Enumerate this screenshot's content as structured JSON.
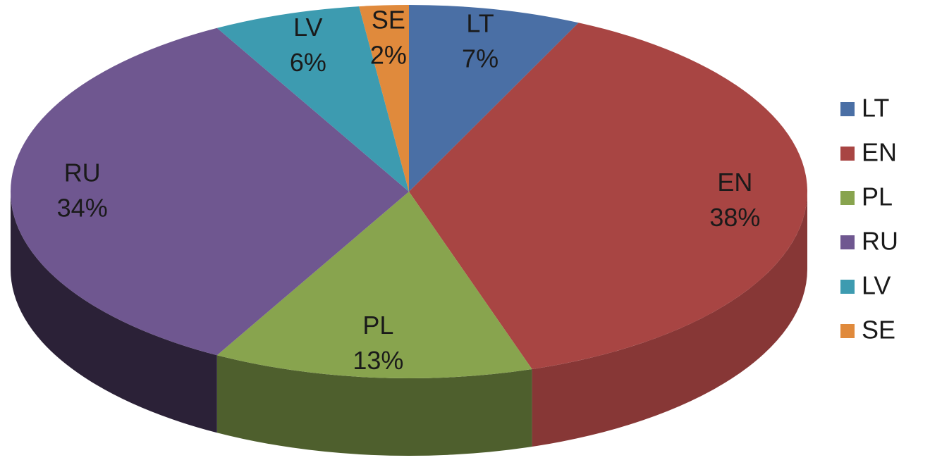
{
  "chart_data": {
    "type": "pie",
    "categories": [
      "LT",
      "EN",
      "PL",
      "RU",
      "LV",
      "SE"
    ],
    "values": [
      7,
      38,
      13,
      34,
      6,
      2
    ],
    "value_labels": [
      "7%",
      "38%",
      "13%",
      "34%",
      "6%",
      "2%"
    ],
    "colors": [
      "#4a6fa5",
      "#a84543",
      "#88a44e",
      "#6f5790",
      "#3d9bb0",
      "#e08a3c"
    ],
    "legend": "right"
  }
}
